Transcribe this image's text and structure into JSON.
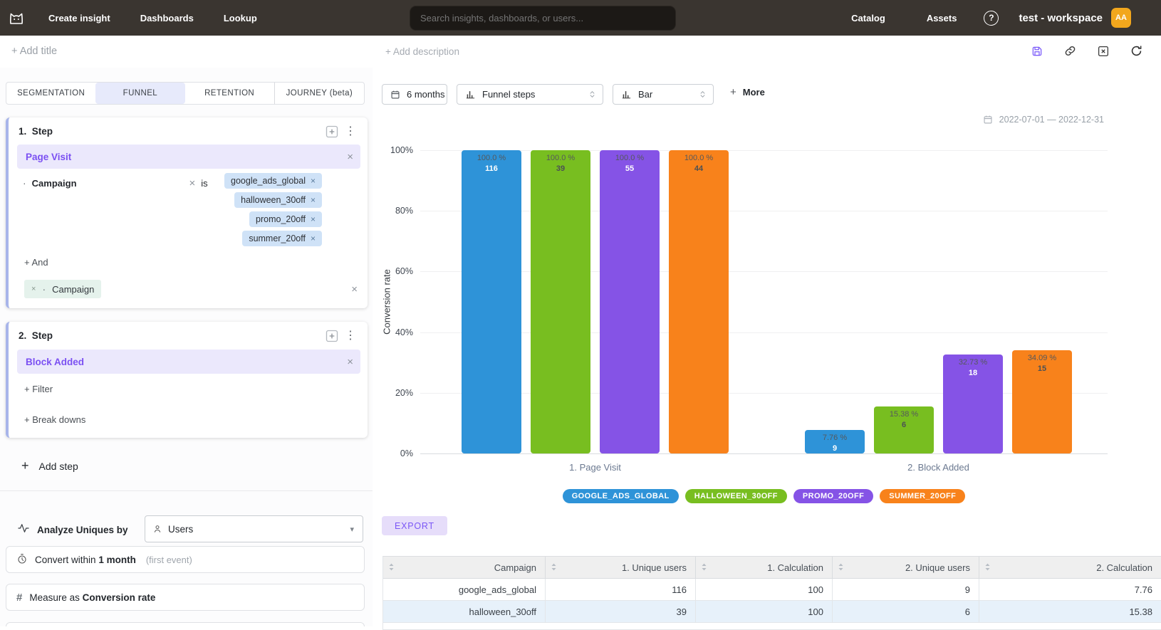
{
  "navbar": {
    "items": [
      {
        "label": "Create insight"
      },
      {
        "label": "Dashboards"
      },
      {
        "label": "Lookup"
      }
    ],
    "search_placeholder": "Search insights, dashboards, or users...",
    "right_items": [
      {
        "label": "Catalog"
      },
      {
        "label": "Assets"
      }
    ],
    "workspace": "test - workspace",
    "avatar_initials": "AA"
  },
  "toolbar": {
    "add_title": "+ Add title",
    "add_description": "+ Add description"
  },
  "tabs": [
    {
      "label": "SEGMENTATION",
      "active": false
    },
    {
      "label": "FUNNEL",
      "active": true
    },
    {
      "label": "RETENTION",
      "active": false
    },
    {
      "label": "JOURNEY (beta)",
      "active": false
    }
  ],
  "builder": {
    "steps": [
      {
        "number": "1.",
        "title": "Step",
        "event": "Page Visit",
        "filter": {
          "property": "Campaign",
          "operator": "is",
          "values": [
            "google_ads_global",
            "halloween_30off",
            "promo_20off",
            "summer_20off"
          ]
        },
        "and_label": "+ And",
        "breakdown": {
          "property": "Campaign"
        }
      },
      {
        "number": "2.",
        "title": "Step",
        "event": "Block Added",
        "filter_label": "+ Filter",
        "breakdowns_label": "+ Break downs"
      }
    ],
    "add_step_label": "Add step",
    "analyze": {
      "label": "Analyze Uniques by",
      "value": "Users"
    },
    "convert": {
      "prefix": "Convert within",
      "value": "1 month",
      "hint": "(first event)"
    },
    "measure": {
      "prefix": "Measure as",
      "value": "Conversion rate"
    }
  },
  "controls": {
    "range": "6 months",
    "metric": "Funnel steps",
    "chart_type": "Bar",
    "more_label": "More"
  },
  "date_range": "2022-07-01 — 2022-12-31",
  "chart_data": {
    "type": "bar",
    "ylabel": "Conversion rate",
    "categories": [
      "1. Page Visit",
      "2. Block Added"
    ],
    "y_ticks": [
      "100%",
      "80%",
      "60%",
      "40%",
      "20%",
      "0%"
    ],
    "ylim": [
      0,
      100
    ],
    "grid": true,
    "legend_position": "bottom",
    "series": [
      {
        "name": "GOOGLE_ADS_GLOBAL",
        "color": "#2e93d8",
        "values": [
          100.0,
          7.76
        ],
        "counts": [
          116,
          9
        ],
        "labels": [
          "100.0 %",
          "7.76 %"
        ],
        "label_style": "light"
      },
      {
        "name": "HALLOWEEN_30OFF",
        "color": "#78be20",
        "values": [
          100.0,
          15.38
        ],
        "counts": [
          39,
          6
        ],
        "labels": [
          "100.0 %",
          "15.38 %"
        ],
        "label_style": "dark"
      },
      {
        "name": "PROMO_20OFF",
        "color": "#8553e6",
        "values": [
          100.0,
          32.73
        ],
        "counts": [
          55,
          18
        ],
        "labels": [
          "100.0 %",
          "32.73 %"
        ],
        "label_style": "light"
      },
      {
        "name": "SUMMER_20OFF",
        "color": "#f8821b",
        "values": [
          100.0,
          34.09
        ],
        "counts": [
          44,
          15
        ],
        "labels": [
          "100.0 %",
          "34.09 %"
        ],
        "label_style": "dark"
      }
    ]
  },
  "export_label": "EXPORT",
  "table": {
    "columns": [
      "Campaign",
      "1. Unique users",
      "1. Calculation",
      "2. Unique users",
      "2. Calculation"
    ],
    "rows": [
      {
        "cells": [
          "google_ads_global",
          "116",
          "100",
          "9",
          "7.76"
        ],
        "highlight": false
      },
      {
        "cells": [
          "halloween_30off",
          "39",
          "100",
          "6",
          "15.38"
        ],
        "highlight": true
      }
    ]
  },
  "misc": {
    "plus": "+",
    "close": "×",
    "kebab": "⋮",
    "caret": "▾",
    "hash": "#",
    "help": "?"
  }
}
